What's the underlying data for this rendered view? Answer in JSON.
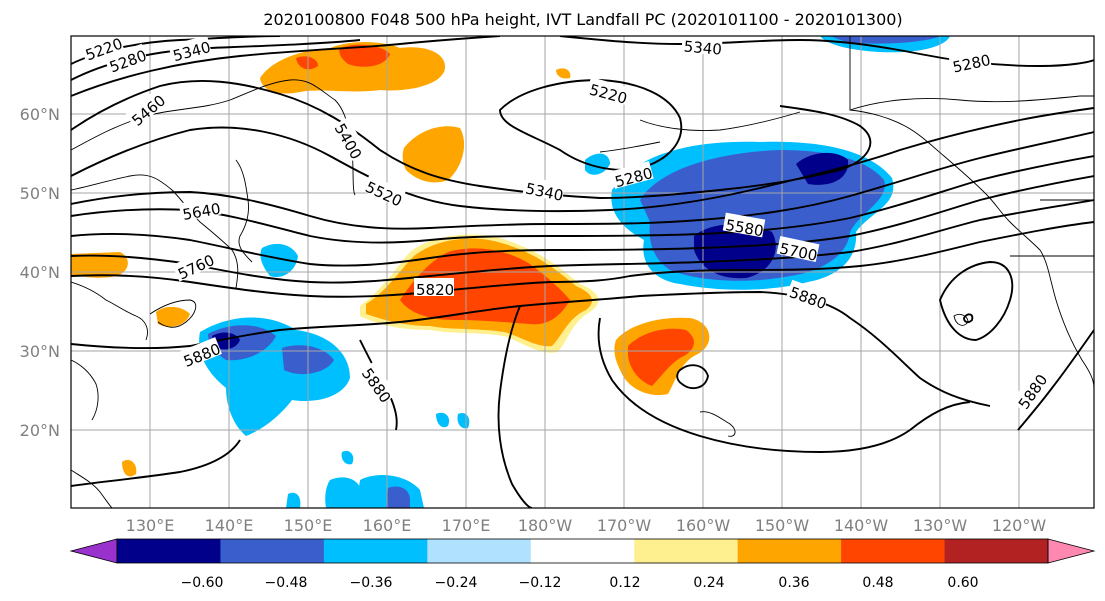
{
  "title": "2020100800 F048 500 hPa height, IVT Landfall PC (2020101100 - 2020101300)",
  "lat_labels": [
    "60°N",
    "50°N",
    "40°N",
    "30°N",
    "20°N"
  ],
  "lon_labels": [
    "130°E",
    "140°E",
    "150°E",
    "160°E",
    "170°E",
    "180°W",
    "170°W",
    "160°W",
    "150°W",
    "140°W",
    "130°W",
    "120°W"
  ],
  "colorbar": {
    "tick_labels": [
      "−0.60",
      "−0.48",
      "−0.36",
      "−0.24",
      "−0.12",
      "0.12",
      "0.24",
      "0.36",
      "0.48",
      "0.60"
    ],
    "colors": [
      "#9932cc",
      "#00008b",
      "#3a5fcd",
      "#00bfff",
      "#b0e2ff",
      "#ffffff",
      "#fff08f",
      "#ffa500",
      "#ff4500",
      "#b22222",
      "#ff88b0"
    ]
  },
  "contour_labels": [
    "5220",
    "5280",
    "5340",
    "5460",
    "5400",
    "5520",
    "5340",
    "5220",
    "5280",
    "5340",
    "5280",
    "5640",
    "5760",
    "5820",
    "5580",
    "5700",
    "5880",
    "5880",
    "5880",
    "5880"
  ]
}
